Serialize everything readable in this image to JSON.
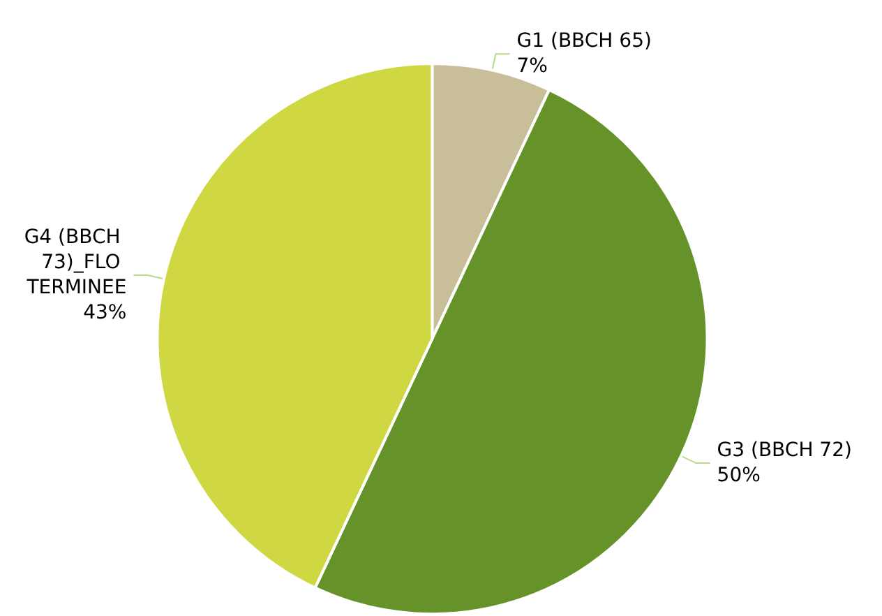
{
  "chart_data": {
    "type": "pie",
    "categories": [
      "G1 (BBCH 65)",
      "G3 (BBCH 72)",
      "G4 (BBCH 73)_FLO TERMINEE"
    ],
    "values": [
      7,
      50,
      43
    ],
    "value_labels": [
      "7%",
      "50%",
      "43%"
    ],
    "colors": [
      "#c8bf9a",
      "#66922a",
      "#cfd843"
    ],
    "legend": false
  }
}
